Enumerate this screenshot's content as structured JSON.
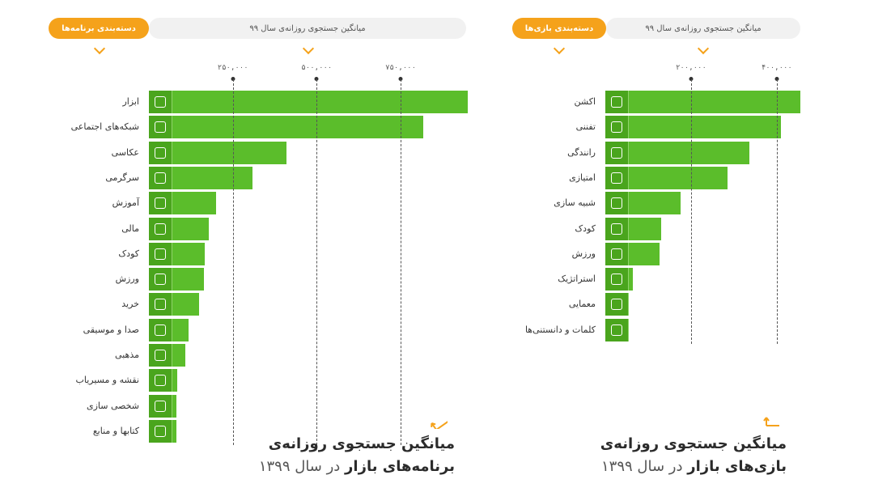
{
  "apps_panel": {
    "category_label": "دسته‌بندی برنامه‌ها",
    "metric_label": "میانگین جستجوی روزانه‌ی سال ۹۹",
    "footer_title": "میانگین جستجوی روزانه‌ی",
    "footer_bold": "برنامه‌های بازار",
    "footer_rest": " در سال ۱۳۹۹",
    "tick_labels": [
      "۲۵۰,۰۰۰",
      "۵۰۰,۰۰۰",
      "۷۵۰,۰۰۰"
    ]
  },
  "games_panel": {
    "category_label": "دسته‌بندی بازی‌ها",
    "metric_label": "میانگین جستجوی روزانه‌ی سال ۹۹",
    "footer_title": "میانگین جستجوی روزانه‌ی",
    "footer_bold": "بازی‌های بازار",
    "footer_rest": " در سال ۱۳۹۹",
    "tick_labels": [
      "۲۰۰,۰۰۰",
      "۴۰۰,۰۰۰"
    ]
  },
  "colors": {
    "bar": "#5bbd2b",
    "icon_bg": "#4aa51d",
    "accent": "#f5a21b"
  },
  "chart_data": [
    {
      "type": "bar",
      "orientation": "horizontal",
      "title": "میانگین جستجوی روزانه‌ی برنامه‌های بازار در سال ۱۳۹۹",
      "xlabel": "میانگین جستجوی روزانه‌ی سال ۹۹",
      "ylabel": "دسته‌بندی برنامه‌ها",
      "xlim": [
        0,
        950000
      ],
      "xticks": [
        250000,
        500000,
        750000
      ],
      "grid": true,
      "categories": [
        "ابزار",
        "شبکه‌های اجتماعی",
        "عکاسی",
        "سرگرمی",
        "آموزش",
        "مالی",
        "کودک",
        "ورزش",
        "خرید",
        "صدا و موسیقی",
        "مذهبی",
        "نقشه و مسیریاب",
        "شخصی سازی",
        "کتابها و منابع"
      ],
      "icons": [
        "tools-icon",
        "social-icon",
        "camera-icon",
        "puzzle-icon",
        "graduation-cap-icon",
        "wallet-icon",
        "pinwheel-icon",
        "basketball-icon",
        "cart-icon",
        "music-icon",
        "mosque-icon",
        "car-icon",
        "image-icon",
        "book-icon"
      ],
      "values": [
        950000,
        817000,
        410000,
        309000,
        200000,
        178000,
        167000,
        163000,
        150000,
        117000,
        108000,
        85000,
        82000,
        82000
      ]
    },
    {
      "type": "bar",
      "orientation": "horizontal",
      "title": "میانگین جستجوی روزانه‌ی بازی‌های بازار در سال ۱۳۹۹",
      "xlabel": "میانگین جستجوی روزانه‌ی سال ۹۹",
      "ylabel": "دسته‌بندی بازی‌ها",
      "xlim": [
        0,
        455000
      ],
      "xticks": [
        200000,
        400000
      ],
      "grid": true,
      "categories": [
        "اکشن",
        "تفننی",
        "رانندگی",
        "امتیازی",
        "شبیه سازی",
        "کودک",
        "ورزش",
        "استراتژیک",
        "معمایی",
        "کلمات و دانستنی‌ها"
      ],
      "icons": [
        "gun-icon",
        "tictactoe-icon",
        "steering-wheel-icon",
        "trophy-icon",
        "vr-goggles-icon",
        "pinwheel-icon",
        "soccer-ball-icon",
        "castle-icon",
        "question-icon",
        "letters-icon"
      ],
      "values": [
        455000,
        410000,
        336000,
        286000,
        175000,
        130000,
        126000,
        65000,
        54000,
        45000
      ]
    }
  ]
}
